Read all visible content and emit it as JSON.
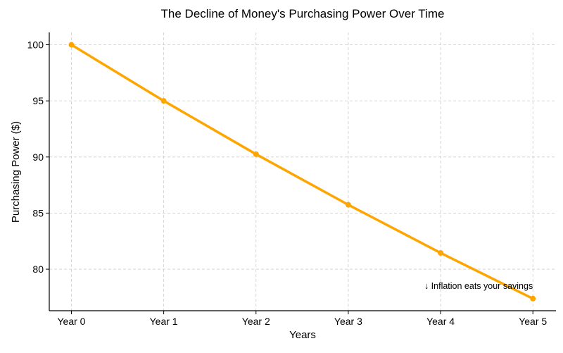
{
  "chart_data": {
    "type": "line",
    "title": "The Decline of Money's Purchasing Power Over Time",
    "xlabel": "Years",
    "ylabel": "Purchasing Power ($)",
    "categories": [
      "Year 0",
      "Year 1",
      "Year 2",
      "Year 3",
      "Year 4",
      "Year 5"
    ],
    "series": [
      {
        "name": "Purchasing Power",
        "values": [
          100,
          95,
          90.25,
          85.74,
          81.45,
          77.38
        ],
        "color": "#FFA500"
      }
    ],
    "yticks": [
      80,
      85,
      90,
      95,
      100
    ],
    "ytick_labels": [
      "80",
      "85",
      "90",
      "95",
      "100"
    ],
    "ylim": [
      76.3,
      101.1
    ],
    "xlim": [
      -0.24,
      5.25
    ],
    "grid": true,
    "annotation": {
      "text": "↓ Inflation eats your savings",
      "x": 5,
      "y": 78.5
    }
  }
}
